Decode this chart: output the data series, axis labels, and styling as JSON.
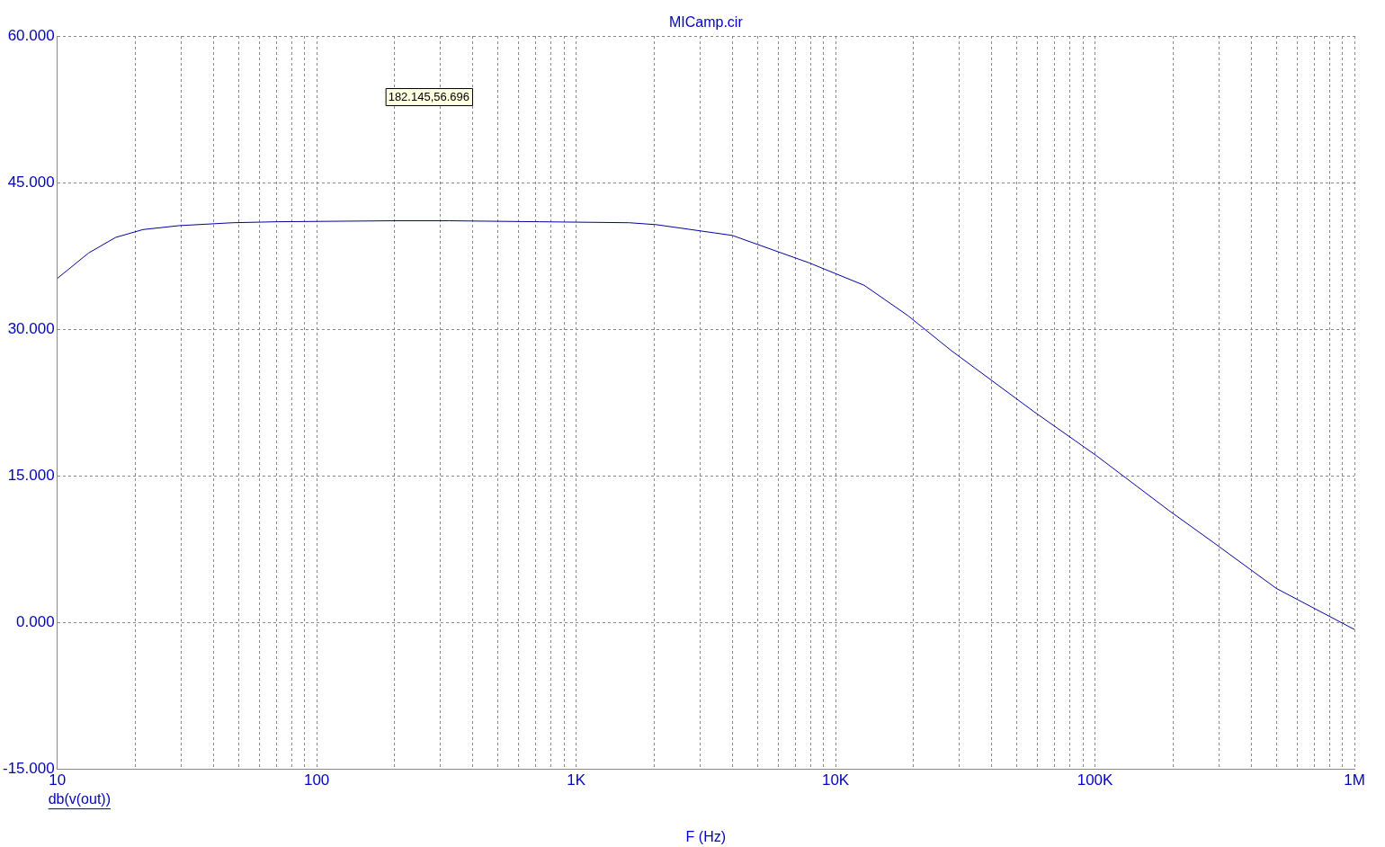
{
  "chart_data": {
    "type": "line",
    "subtitle": "MICamp.cir",
    "xlabel": "F (Hz)",
    "log": "x",
    "grid": true,
    "legend": false,
    "marker": "none",
    "line_style": "solid",
    "xlim": [
      10,
      1000000
    ],
    "xticks": [
      {
        "value": 10,
        "label": "10"
      },
      {
        "value": 20,
        "label": null
      },
      {
        "value": 30,
        "label": null
      },
      {
        "value": 40,
        "label": null
      },
      {
        "value": 50,
        "label": null
      },
      {
        "value": 60,
        "label": null
      },
      {
        "value": 70,
        "label": null
      },
      {
        "value": 80,
        "label": null
      },
      {
        "value": 90,
        "label": null
      },
      {
        "value": 100,
        "label": "100"
      },
      {
        "value": 200,
        "label": null
      },
      {
        "value": 300,
        "label": null
      },
      {
        "value": 400,
        "label": null
      },
      {
        "value": 500,
        "label": null
      },
      {
        "value": 600,
        "label": null
      },
      {
        "value": 700,
        "label": null
      },
      {
        "value": 800,
        "label": null
      },
      {
        "value": 900,
        "label": null
      },
      {
        "value": 1000,
        "label": "1K"
      },
      {
        "value": 2000,
        "label": null
      },
      {
        "value": 3000,
        "label": null
      },
      {
        "value": 4000,
        "label": null
      },
      {
        "value": 5000,
        "label": null
      },
      {
        "value": 6000,
        "label": null
      },
      {
        "value": 7000,
        "label": null
      },
      {
        "value": 8000,
        "label": null
      },
      {
        "value": 9000,
        "label": null
      },
      {
        "value": 10000,
        "label": "10K"
      },
      {
        "value": 20000,
        "label": null
      },
      {
        "value": 30000,
        "label": null
      },
      {
        "value": 40000,
        "label": null
      },
      {
        "value": 50000,
        "label": null
      },
      {
        "value": 60000,
        "label": null
      },
      {
        "value": 70000,
        "label": null
      },
      {
        "value": 80000,
        "label": null
      },
      {
        "value": 90000,
        "label": null
      },
      {
        "value": 100000,
        "label": "100K"
      },
      {
        "value": 200000,
        "label": null
      },
      {
        "value": 300000,
        "label": null
      },
      {
        "value": 400000,
        "label": null
      },
      {
        "value": 500000,
        "label": null
      },
      {
        "value": 600000,
        "label": null
      },
      {
        "value": 700000,
        "label": null
      },
      {
        "value": 800000,
        "label": null
      },
      {
        "value": 900000,
        "label": null
      },
      {
        "value": 1000000,
        "label": "1M"
      }
    ],
    "ylim": [
      -15,
      60
    ],
    "yticks": [
      {
        "value": -15,
        "label": "-15.000"
      },
      {
        "value": 0,
        "label": "0.000"
      },
      {
        "value": 15,
        "label": "15.000"
      },
      {
        "value": 30,
        "label": "30.000"
      },
      {
        "value": 45,
        "label": "45.000"
      },
      {
        "value": 60,
        "label": "60.000"
      }
    ],
    "annotations": [
      "182.145,56.696",
      "db(v(out))"
    ],
    "series": [
      {
        "color": "#0000a0",
        "x": [
          10,
          13.2,
          16.8,
          21.4,
          29.4,
          47.5,
          70.9,
          200,
          324,
          719,
          1600,
          2040,
          4000,
          7900,
          12900,
          19000,
          28000,
          58000,
          101000,
          192000,
          286000,
          500000,
          1000000
        ],
        "values": [
          35.2,
          37.8,
          39.4,
          40.2,
          40.6,
          40.9,
          41.0,
          41.1,
          41.1,
          41.0,
          40.9,
          40.7,
          39.6,
          36.8,
          34.5,
          31.4,
          27.8,
          21.6,
          17.1,
          11.5,
          8.2,
          3.5,
          -0.7
        ]
      }
    ]
  }
}
